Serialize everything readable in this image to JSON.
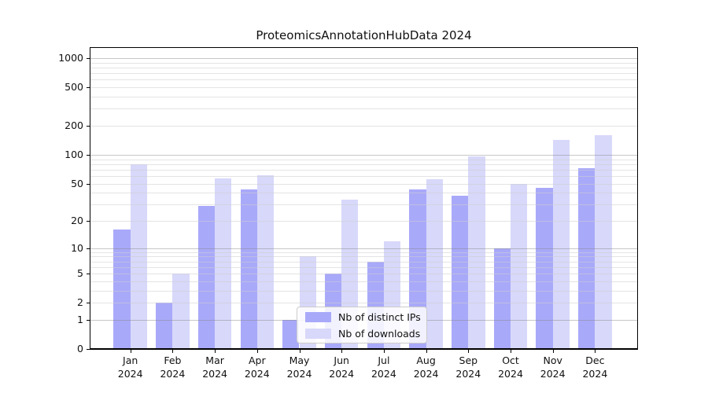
{
  "title": "ProteomicsAnnotationHubData 2024",
  "chart_data": {
    "type": "bar",
    "title": "ProteomicsAnnotationHubData 2024",
    "scale": "log10(1+y)",
    "grid": "on",
    "legend_position": "bottom-center",
    "categories": [
      "Jan",
      "Feb",
      "Mar",
      "Apr",
      "May",
      "Jun",
      "Jul",
      "Aug",
      "Sep",
      "Oct",
      "Nov",
      "Dec"
    ],
    "year": "2024",
    "y_ticks": [
      0,
      1,
      2,
      5,
      10,
      20,
      50,
      100,
      200,
      500,
      1000
    ],
    "ylim": [
      0,
      1250
    ],
    "series": [
      {
        "name": "Nb of distinct IPs",
        "color": "#a9a9fa",
        "values": [
          16,
          2,
          29,
          43,
          1,
          5,
          7,
          43,
          37,
          10,
          45,
          73
        ]
      },
      {
        "name": "Nb of downloads",
        "color": "#d8d8fa",
        "values": [
          80,
          5,
          57,
          61,
          8,
          34,
          12,
          55,
          96,
          50,
          143,
          159
        ]
      }
    ]
  }
}
